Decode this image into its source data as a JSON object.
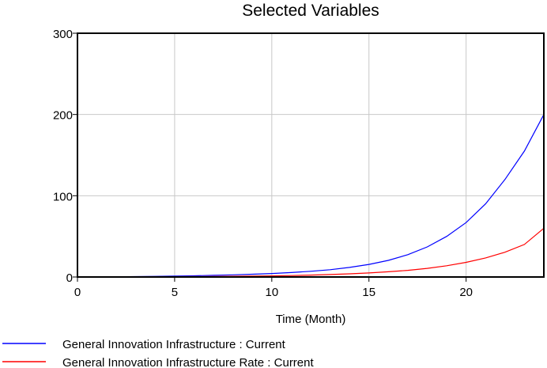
{
  "chart_data": {
    "type": "line",
    "title": "Selected Variables",
    "xlabel": "Time (Month)",
    "ylabel": "",
    "xlim": [
      0,
      24
    ],
    "ylim": [
      0,
      300
    ],
    "x_ticks": [
      0,
      5,
      10,
      15,
      20
    ],
    "y_ticks": [
      0,
      100,
      200,
      300
    ],
    "grid": true,
    "legend_position": "bottom-left",
    "x": [
      0,
      1,
      2,
      3,
      4,
      5,
      6,
      7,
      8,
      9,
      10,
      11,
      12,
      13,
      14,
      15,
      16,
      17,
      18,
      19,
      20,
      21,
      22,
      23,
      24
    ],
    "series": [
      {
        "name": "General Innovation Infrastructure : Current",
        "color": "#0000ff",
        "values": [
          0,
          0.1,
          0.3,
          0.5,
          0.8,
          1.1,
          1.5,
          2.0,
          2.6,
          3.4,
          4.3,
          5.5,
          7.0,
          9.0,
          11.8,
          15.5,
          20.5,
          27.5,
          37,
          50,
          67,
          90,
          120,
          155,
          200
        ]
      },
      {
        "name": "General Innovation Infrastructure Rate : Current",
        "color": "#ff0000",
        "values": [
          0,
          0.03,
          0.08,
          0.15,
          0.25,
          0.35,
          0.5,
          0.7,
          0.9,
          1.1,
          1.4,
          1.8,
          2.3,
          3.0,
          3.9,
          5.0,
          6.4,
          8.2,
          10.6,
          13.8,
          18,
          23.5,
          30.5,
          40,
          60
        ]
      }
    ]
  }
}
